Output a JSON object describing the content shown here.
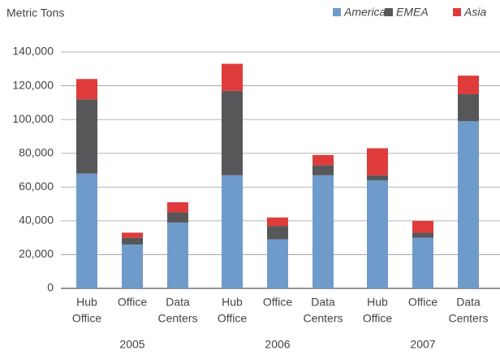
{
  "chart_data": {
    "type": "stacked_bar",
    "ylabel": "Metric Tons",
    "groups": [
      "2005",
      "2006",
      "2007"
    ],
    "categories": [
      [
        "Hub",
        "Office"
      ],
      [
        "Office"
      ],
      [
        "Data",
        "Centers"
      ],
      [
        "Hub",
        "Office"
      ],
      [
        "Office"
      ],
      [
        "Data",
        "Centers"
      ],
      [
        "Hub",
        "Office"
      ],
      [
        "Office"
      ],
      [
        "Data",
        "Centers"
      ]
    ],
    "series": [
      {
        "name": "America",
        "color": "#6f9bcb",
        "values": [
          68000,
          26000,
          39000,
          67000,
          29000,
          67000,
          64000,
          30000,
          99000
        ]
      },
      {
        "name": "EMEA",
        "color": "#57575a",
        "values": [
          44000,
          4000,
          6000,
          50000,
          8000,
          6000,
          3000,
          3000,
          16000
        ]
      },
      {
        "name": "Asia",
        "color": "#e03b3b",
        "values": [
          12000,
          3000,
          6000,
          16000,
          5000,
          6000,
          16000,
          7000,
          11000
        ]
      }
    ],
    "ylim": [
      0,
      140000
    ],
    "yticks": [
      0,
      {
        "value": 20000,
        "label": "20,000"
      },
      {
        "value": 40000,
        "label": "40,000"
      },
      {
        "value": 60000,
        "label": "60,000"
      },
      {
        "value": 80000,
        "label": "80,000"
      },
      {
        "value": 100000,
        "label": "100,000"
      },
      {
        "value": 120000,
        "label": "120,000"
      },
      {
        "value": 140000,
        "label": "140,000"
      }
    ],
    "grid": true,
    "legend": "top-right"
  }
}
